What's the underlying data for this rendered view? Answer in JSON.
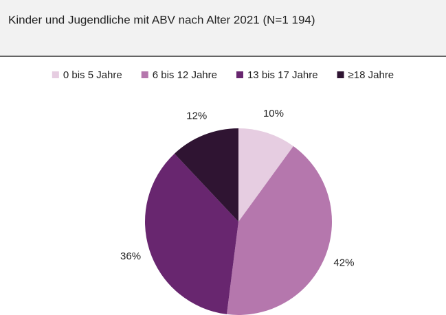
{
  "chart_data": {
    "type": "pie",
    "title": "Kinder und Jugendliche mit ABV nach Alter 2021 (N=1 194)",
    "categories": [
      "0 bis 5 Jahre",
      "6 bis 12 Jahre",
      "13 bis 17 Jahre",
      "≥18 Jahre"
    ],
    "values": [
      10,
      42,
      36,
      12
    ],
    "value_labels": [
      "10%",
      "42%",
      "36%",
      "12%"
    ],
    "colors": [
      "#e6cde1",
      "#b577ad",
      "#68266f",
      "#2f1432"
    ],
    "legend": "top"
  }
}
